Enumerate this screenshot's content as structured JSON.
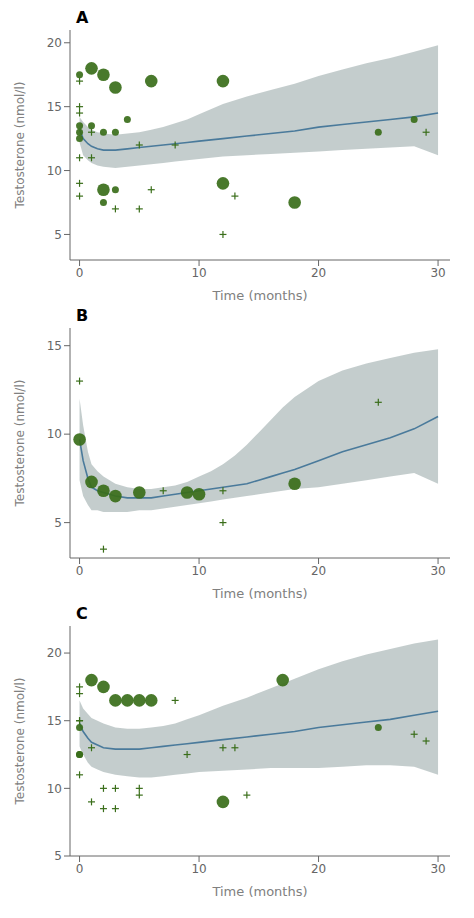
{
  "chart_data": [
    {
      "type": "line",
      "title": "A",
      "xlabel": "Time (months)",
      "ylabel": "Testosterone (nmol/l)",
      "xlim": [
        -0.8,
        31
      ],
      "ylim": [
        3,
        21
      ],
      "xticks": [
        0,
        10,
        20,
        30
      ],
      "yticks": [
        5,
        10,
        15,
        20
      ],
      "grid": false,
      "series": [
        {
          "type": "band",
          "color": "#b0bcbc",
          "x": [
            0,
            0.3,
            0.7,
            1,
            1.5,
            2,
            3,
            4,
            5,
            6,
            7,
            8,
            9,
            10,
            12,
            14,
            16,
            18,
            20,
            22,
            24,
            26,
            28,
            30
          ],
          "upper": [
            14.2,
            13.8,
            13.4,
            13.2,
            13.0,
            12.9,
            12.8,
            12.9,
            13.0,
            13.2,
            13.4,
            13.7,
            14.0,
            14.4,
            15.2,
            15.8,
            16.3,
            16.8,
            17.4,
            17.9,
            18.4,
            18.8,
            19.3,
            19.8
          ],
          "lower": [
            12.2,
            11.2,
            10.8,
            10.6,
            10.4,
            10.3,
            10.2,
            10.3,
            10.4,
            10.5,
            10.6,
            10.7,
            10.8,
            10.9,
            11.1,
            11.2,
            11.3,
            11.4,
            11.5,
            11.6,
            11.7,
            11.8,
            11.9,
            11.2
          ]
        },
        {
          "type": "line",
          "color": "#4a7a9b",
          "x": [
            0,
            0.3,
            0.7,
            1,
            1.5,
            2,
            3,
            4,
            5,
            6,
            7,
            8,
            9,
            10,
            12,
            14,
            16,
            18,
            20,
            22,
            24,
            26,
            28,
            30
          ],
          "values": [
            13.2,
            12.5,
            12.1,
            11.9,
            11.7,
            11.6,
            11.6,
            11.7,
            11.8,
            11.9,
            12.0,
            12.1,
            12.2,
            12.3,
            12.5,
            12.7,
            12.9,
            13.1,
            13.4,
            13.6,
            13.8,
            14.0,
            14.2,
            14.5
          ]
        },
        {
          "type": "scatter",
          "color": "#3a6e1a",
          "marker": "plus",
          "x": [
            0,
            0,
            0,
            0,
            0,
            0,
            1,
            1,
            3,
            5,
            5,
            6,
            8,
            12,
            13,
            29
          ],
          "values": [
            17.0,
            15.0,
            14.5,
            11.0,
            9.0,
            8.0,
            13.0,
            11.0,
            7.0,
            12.0,
            7.0,
            8.5,
            12.0,
            5.0,
            8.0,
            13.0
          ]
        },
        {
          "type": "scatter",
          "color": "#3a6e1a",
          "marker": "small circle",
          "x": [
            0,
            0,
            0,
            0,
            1,
            2,
            2,
            3,
            3,
            4,
            25,
            28
          ],
          "values": [
            17.5,
            13.5,
            13.0,
            12.5,
            13.5,
            13.0,
            7.5,
            13.0,
            8.5,
            14.0,
            13.0,
            14.0
          ]
        },
        {
          "type": "scatter",
          "color": "#3a6e1a",
          "marker": "large circle",
          "x": [
            1,
            2,
            2,
            3,
            6,
            12,
            12,
            18
          ],
          "values": [
            18.0,
            17.5,
            8.5,
            16.5,
            17.0,
            17.0,
            9.0,
            7.5
          ]
        }
      ]
    },
    {
      "type": "line",
      "title": "B",
      "xlabel": "Time (months)",
      "ylabel": "Testosterone (nmol/l)",
      "xlim": [
        -0.8,
        31
      ],
      "ylim": [
        3,
        16
      ],
      "xticks": [
        0,
        10,
        20,
        30
      ],
      "yticks": [
        5,
        10,
        15
      ],
      "grid": false,
      "series": [
        {
          "type": "band",
          "color": "#b0bcbc",
          "x": [
            0,
            0.3,
            0.7,
            1,
            1.5,
            2,
            3,
            4,
            5,
            6,
            7,
            8,
            9,
            10,
            11,
            12,
            13,
            14,
            15,
            16,
            17,
            18,
            20,
            22,
            24,
            26,
            28,
            30
          ],
          "upper": [
            12.0,
            10.5,
            9.0,
            8.3,
            7.9,
            7.6,
            7.2,
            7.0,
            6.9,
            6.9,
            7.0,
            7.1,
            7.3,
            7.6,
            7.9,
            8.3,
            8.8,
            9.4,
            10.1,
            10.8,
            11.5,
            12.1,
            13.0,
            13.6,
            14.0,
            14.3,
            14.6,
            14.8
          ],
          "lower": [
            7.4,
            6.5,
            6.0,
            5.7,
            5.7,
            5.6,
            5.6,
            5.6,
            5.7,
            5.7,
            5.8,
            5.9,
            6.0,
            6.1,
            6.2,
            6.3,
            6.4,
            6.5,
            6.6,
            6.7,
            6.8,
            6.9,
            7.0,
            7.2,
            7.4,
            7.6,
            7.8,
            7.2
          ]
        },
        {
          "type": "line",
          "color": "#4a7a9b",
          "x": [
            0,
            0.3,
            0.7,
            1,
            1.5,
            2,
            3,
            4,
            5,
            6,
            7,
            8,
            9,
            10,
            11,
            12,
            13,
            14,
            15,
            16,
            17,
            18,
            20,
            22,
            24,
            26,
            28,
            30
          ],
          "values": [
            9.7,
            8.5,
            7.5,
            7.0,
            6.8,
            6.7,
            6.5,
            6.4,
            6.4,
            6.4,
            6.5,
            6.6,
            6.7,
            6.8,
            6.9,
            7.0,
            7.1,
            7.2,
            7.4,
            7.6,
            7.8,
            8.0,
            8.5,
            9.0,
            9.4,
            9.8,
            10.3,
            11.0
          ]
        },
        {
          "type": "scatter",
          "color": "#3a6e1a",
          "marker": "plus",
          "x": [
            0,
            2,
            7,
            12,
            12,
            25
          ],
          "values": [
            13.0,
            3.5,
            6.8,
            5.0,
            6.8,
            11.8
          ]
        },
        {
          "type": "scatter",
          "color": "#3a6e1a",
          "marker": "large circle",
          "x": [
            0,
            1,
            2,
            3,
            5,
            9,
            10,
            18
          ],
          "values": [
            9.7,
            7.3,
            6.8,
            6.5,
            6.7,
            6.7,
            6.6,
            7.2
          ]
        }
      ]
    },
    {
      "type": "line",
      "title": "C",
      "xlabel": "Time (months)",
      "ylabel": "Testosterone (nmol/l)",
      "xlim": [
        -0.8,
        31
      ],
      "ylim": [
        5,
        22
      ],
      "xticks": [
        0,
        10,
        20,
        30
      ],
      "yticks": [
        5,
        10,
        15,
        20
      ],
      "grid": false,
      "series": [
        {
          "type": "band",
          "color": "#b0bcbc",
          "x": [
            0,
            0.3,
            0.7,
            1,
            1.5,
            2,
            3,
            4,
            5,
            6,
            7,
            8,
            9,
            10,
            12,
            14,
            16,
            18,
            20,
            22,
            24,
            26,
            28,
            30
          ],
          "upper": [
            16.5,
            15.9,
            15.5,
            15.2,
            15.0,
            14.8,
            14.5,
            14.4,
            14.4,
            14.5,
            14.6,
            14.8,
            15.1,
            15.4,
            16.1,
            16.7,
            17.4,
            18.1,
            18.8,
            19.4,
            19.9,
            20.3,
            20.7,
            21.0
          ],
          "lower": [
            13.1,
            12.5,
            11.9,
            11.6,
            11.4,
            11.2,
            11.0,
            10.9,
            10.8,
            10.8,
            10.9,
            11.0,
            11.1,
            11.2,
            11.3,
            11.4,
            11.5,
            11.5,
            11.5,
            11.6,
            11.7,
            11.7,
            11.6,
            11.0
          ]
        },
        {
          "type": "line",
          "color": "#4a7a9b",
          "x": [
            0,
            0.3,
            0.7,
            1,
            1.5,
            2,
            3,
            4,
            5,
            6,
            7,
            8,
            9,
            10,
            12,
            14,
            16,
            18,
            20,
            22,
            24,
            26,
            28,
            30
          ],
          "values": [
            14.8,
            14.2,
            13.7,
            13.4,
            13.2,
            13.0,
            12.9,
            12.9,
            12.9,
            13.0,
            13.1,
            13.2,
            13.3,
            13.4,
            13.6,
            13.8,
            14.0,
            14.2,
            14.5,
            14.7,
            14.9,
            15.1,
            15.4,
            15.7
          ]
        },
        {
          "type": "scatter",
          "color": "#3a6e1a",
          "marker": "plus",
          "x": [
            0,
            0,
            0,
            0,
            0,
            0,
            1,
            1,
            2,
            2,
            3,
            3,
            5,
            5,
            8,
            9,
            12,
            13,
            14,
            28,
            29
          ],
          "values": [
            17.5,
            17.0,
            15.0,
            15.0,
            12.5,
            11.0,
            13.0,
            9.0,
            8.5,
            10.0,
            10.0,
            8.5,
            10.0,
            9.5,
            16.5,
            12.5,
            13.0,
            13.0,
            9.5,
            14.0,
            13.5
          ]
        },
        {
          "type": "scatter",
          "color": "#3a6e1a",
          "marker": "small circle",
          "x": [
            0,
            0,
            0,
            25
          ],
          "values": [
            14.5,
            12.5,
            12.5,
            14.5
          ]
        },
        {
          "type": "scatter",
          "color": "#3a6e1a",
          "marker": "large circle",
          "x": [
            1,
            2,
            3,
            4,
            5,
            6,
            12,
            17
          ],
          "values": [
            18.0,
            17.5,
            16.5,
            16.5,
            16.5,
            16.5,
            9.0,
            18.0
          ]
        }
      ]
    }
  ]
}
